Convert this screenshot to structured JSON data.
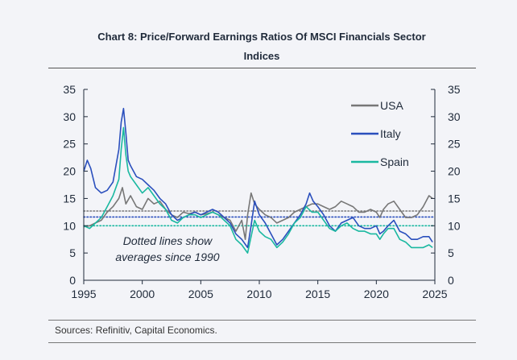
{
  "header": {
    "title_line1": "Chart 8: Price/Forward Earnings Ratios Of MSCI Financials Sector",
    "title_line2": "Indices"
  },
  "footer": {
    "source": "Sources: Refinitiv, Capital Economics."
  },
  "chart_data": {
    "type": "line",
    "title": "Chart 8: Price/Forward Earnings Ratios Of MSCI Financials Sector Indices",
    "xlim": [
      1995,
      2025
    ],
    "ylim": [
      0,
      35
    ],
    "x_ticks": [
      "1995",
      "2000",
      "2005",
      "2010",
      "2015",
      "2020",
      "2025"
    ],
    "y_ticks": [
      "0",
      "5",
      "10",
      "15",
      "20",
      "25",
      "30",
      "35"
    ],
    "grid": false,
    "legend_position": "top-right",
    "annotation": [
      "Dotted lines show",
      "averages since 1990"
    ],
    "averages": {
      "USA": 12.7,
      "Italy": 11.6,
      "Spain": 10.0
    },
    "series": [
      {
        "name": "USA",
        "color": "#777777",
        "x": [
          1995.0,
          1995.5,
          1996.0,
          1996.5,
          1997.0,
          1997.5,
          1998.0,
          1998.3,
          1998.6,
          1999.0,
          1999.5,
          2000.0,
          2000.5,
          2001.0,
          2001.5,
          2002.0,
          2002.5,
          2003.0,
          2003.5,
          2004.0,
          2004.5,
          2005.0,
          2005.5,
          2006.0,
          2006.5,
          2007.0,
          2007.5,
          2008.0,
          2008.5,
          2008.8,
          2009.0,
          2009.3,
          2009.6,
          2010.0,
          2010.5,
          2011.0,
          2011.5,
          2012.0,
          2012.5,
          2013.0,
          2013.5,
          2014.0,
          2014.5,
          2015.0,
          2015.5,
          2016.0,
          2016.5,
          2017.0,
          2017.5,
          2018.0,
          2018.5,
          2019.0,
          2019.5,
          2020.0,
          2020.3,
          2020.6,
          2021.0,
          2021.5,
          2022.0,
          2022.5,
          2023.0,
          2023.5,
          2024.0,
          2024.5,
          2024.8
        ],
        "values": [
          9.8,
          10.0,
          10.5,
          11.0,
          12.5,
          13.5,
          15.0,
          17.0,
          14.0,
          15.5,
          13.5,
          13.0,
          15.0,
          14.0,
          14.5,
          13.0,
          12.0,
          11.5,
          12.5,
          12.2,
          12.5,
          12.0,
          12.2,
          12.5,
          12.0,
          11.5,
          11.0,
          9.0,
          11.0,
          7.5,
          12.0,
          16.0,
          14.0,
          13.0,
          12.0,
          11.5,
          10.5,
          11.0,
          11.5,
          12.5,
          13.0,
          13.5,
          14.0,
          14.0,
          13.5,
          13.0,
          13.5,
          14.5,
          14.0,
          13.5,
          12.5,
          12.5,
          13.0,
          12.5,
          11.5,
          13.0,
          14.0,
          14.5,
          13.0,
          11.5,
          11.5,
          12.0,
          13.5,
          15.5,
          15.0
        ]
      },
      {
        "name": "Italy",
        "color": "#2a4fbd",
        "x": [
          1995.0,
          1995.3,
          1995.6,
          1996.0,
          1996.5,
          1997.0,
          1997.5,
          1998.0,
          1998.2,
          1998.4,
          1998.6,
          1998.8,
          1999.0,
          1999.5,
          2000.0,
          2000.5,
          2001.0,
          2001.5,
          2002.0,
          2002.5,
          2003.0,
          2003.5,
          2004.0,
          2004.5,
          2005.0,
          2005.5,
          2006.0,
          2006.5,
          2007.0,
          2007.5,
          2008.0,
          2008.5,
          2009.0,
          2009.3,
          2009.6,
          2010.0,
          2010.5,
          2011.0,
          2011.5,
          2012.0,
          2012.5,
          2013.0,
          2013.5,
          2014.0,
          2014.3,
          2014.6,
          2015.0,
          2015.5,
          2016.0,
          2016.5,
          2017.0,
          2017.5,
          2018.0,
          2018.5,
          2019.0,
          2019.5,
          2020.0,
          2020.3,
          2020.6,
          2021.0,
          2021.5,
          2022.0,
          2022.5,
          2023.0,
          2023.5,
          2024.0,
          2024.5,
          2024.8
        ],
        "values": [
          20.0,
          22.0,
          20.5,
          17.0,
          16.0,
          16.5,
          18.0,
          24.0,
          29.0,
          31.5,
          27.0,
          22.0,
          21.0,
          19.0,
          18.5,
          17.5,
          16.5,
          15.0,
          14.0,
          12.0,
          11.0,
          11.5,
          12.0,
          12.5,
          12.0,
          12.5,
          13.0,
          12.5,
          11.5,
          10.5,
          8.5,
          7.5,
          6.0,
          10.0,
          14.5,
          12.0,
          10.5,
          8.5,
          6.5,
          7.5,
          9.0,
          10.5,
          12.0,
          14.0,
          16.0,
          14.5,
          13.5,
          12.0,
          10.0,
          9.0,
          10.5,
          11.0,
          11.5,
          10.0,
          9.5,
          9.5,
          10.0,
          8.5,
          9.0,
          10.0,
          11.0,
          9.0,
          8.5,
          7.5,
          7.5,
          8.0,
          8.0,
          7.0
        ]
      },
      {
        "name": "Spain",
        "color": "#1ab8a0",
        "x": [
          1995.0,
          1995.5,
          1996.0,
          1996.5,
          1997.0,
          1997.5,
          1998.0,
          1998.2,
          1998.4,
          1998.6,
          1998.8,
          1999.0,
          1999.5,
          2000.0,
          2000.5,
          2001.0,
          2001.5,
          2002.0,
          2002.5,
          2003.0,
          2003.5,
          2004.0,
          2004.5,
          2005.0,
          2005.5,
          2006.0,
          2006.5,
          2007.0,
          2007.5,
          2008.0,
          2008.5,
          2009.0,
          2009.3,
          2009.6,
          2010.0,
          2010.5,
          2011.0,
          2011.5,
          2012.0,
          2012.5,
          2013.0,
          2013.5,
          2014.0,
          2014.5,
          2015.0,
          2015.5,
          2016.0,
          2016.5,
          2017.0,
          2017.5,
          2018.0,
          2018.5,
          2019.0,
          2019.5,
          2020.0,
          2020.3,
          2020.6,
          2021.0,
          2021.5,
          2022.0,
          2022.5,
          2023.0,
          2023.5,
          2024.0,
          2024.5,
          2024.8
        ],
        "values": [
          10.0,
          9.5,
          10.5,
          11.5,
          13.5,
          15.5,
          18.5,
          24.0,
          28.0,
          23.0,
          20.0,
          19.0,
          17.5,
          16.0,
          17.0,
          15.5,
          14.0,
          13.0,
          11.0,
          10.5,
          11.5,
          12.0,
          12.0,
          11.5,
          12.0,
          12.5,
          12.0,
          11.0,
          10.0,
          7.5,
          6.5,
          5.0,
          8.0,
          11.0,
          9.0,
          8.0,
          7.5,
          6.0,
          7.0,
          8.5,
          10.5,
          11.5,
          13.5,
          12.5,
          12.5,
          11.0,
          9.5,
          9.0,
          10.0,
          10.5,
          9.5,
          9.0,
          9.0,
          8.5,
          8.5,
          7.5,
          8.5,
          9.5,
          9.5,
          7.5,
          7.0,
          6.0,
          6.0,
          6.0,
          6.5,
          6.0
        ]
      }
    ]
  }
}
